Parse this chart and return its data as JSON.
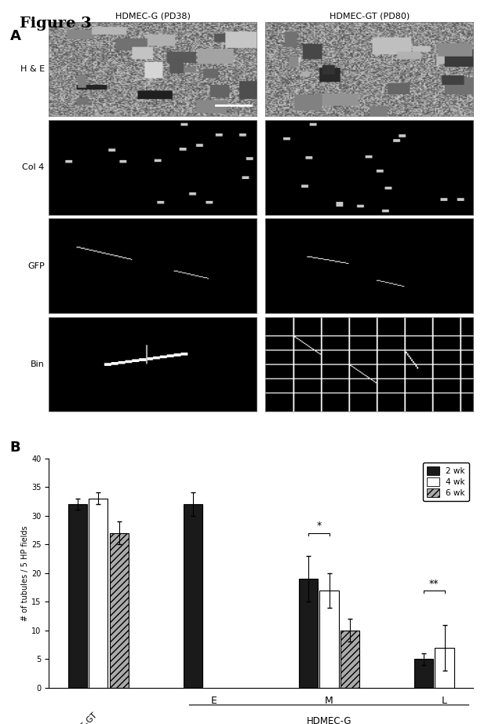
{
  "figure_label": "Figure 3",
  "panel_A_label": "A",
  "panel_B_label": "B",
  "col_labels_top": [
    "HDMEC-G (PD38)",
    "HDMEC-GT (PD80)"
  ],
  "row_labels_left": [
    "H & E",
    "Col 4",
    "GFP",
    "Bin"
  ],
  "bar_groups": [
    "HDMEC-GT",
    "E",
    "M",
    "L"
  ],
  "series_labels": [
    "2 wk",
    "4 wk",
    "6 wk"
  ],
  "bar_values": {
    "HDMEC-GT": [
      32,
      33,
      27
    ],
    "E": [
      32,
      0,
      0
    ],
    "M": [
      19,
      17,
      10
    ],
    "L": [
      5,
      7,
      0
    ]
  },
  "bar_errors": {
    "HDMEC-GT": [
      1,
      1,
      2
    ],
    "E": [
      2,
      0,
      0
    ],
    "M": [
      4,
      3,
      2
    ],
    "L": [
      1,
      4,
      0
    ]
  },
  "bar_colors": [
    "#1a1a1a",
    "#ffffff",
    "#aaaaaa"
  ],
  "bar_hatches": [
    null,
    null,
    "////"
  ],
  "ylabel": "# of tubules / 5 HP fields",
  "xlabel_hdmec_g": "HDMEC-G",
  "ylim": [
    0,
    40
  ],
  "yticks": [
    0,
    5,
    10,
    15,
    20,
    25,
    30,
    35,
    40
  ],
  "significance_M": "*",
  "significance_L": "**",
  "background_color": "#ffffff",
  "group_positions": [
    0,
    1.3,
    2.6,
    3.9
  ],
  "group_width": 0.7
}
